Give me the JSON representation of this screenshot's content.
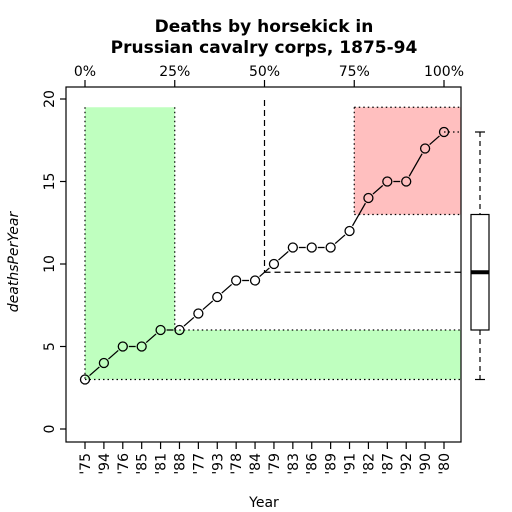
{
  "chart_data": {
    "type": "line",
    "title_line1": "Deaths by horsekick in",
    "title_line2": "Prussian cavalry corps, 1875-94",
    "xlabel": "Year",
    "ylabel": "deathsPerYear",
    "categories": [
      "'75",
      "'94",
      "'76",
      "'85",
      "'81",
      "'88",
      "'77",
      "'93",
      "'78",
      "'84",
      "'79",
      "'83",
      "'86",
      "'89",
      "'91",
      "'82",
      "'87",
      "'92",
      "'90",
      "'80"
    ],
    "values": [
      3,
      4,
      5,
      5,
      6,
      6,
      7,
      8,
      9,
      9,
      10,
      11,
      11,
      11,
      12,
      14,
      15,
      15,
      17,
      18
    ],
    "ylim": [
      0,
      20
    ],
    "yticks": [
      0,
      5,
      10,
      15,
      20
    ],
    "percent_ticks": [
      "0%",
      "25%",
      "50%",
      "75%",
      "100%"
    ],
    "quartiles": {
      "min": 3,
      "q1": 6,
      "median": 9.5,
      "q3": 13,
      "max": 18
    },
    "colors": {
      "low_band": "#bfffbf",
      "high_band": "#ffbfbf",
      "line": "#000000"
    }
  }
}
